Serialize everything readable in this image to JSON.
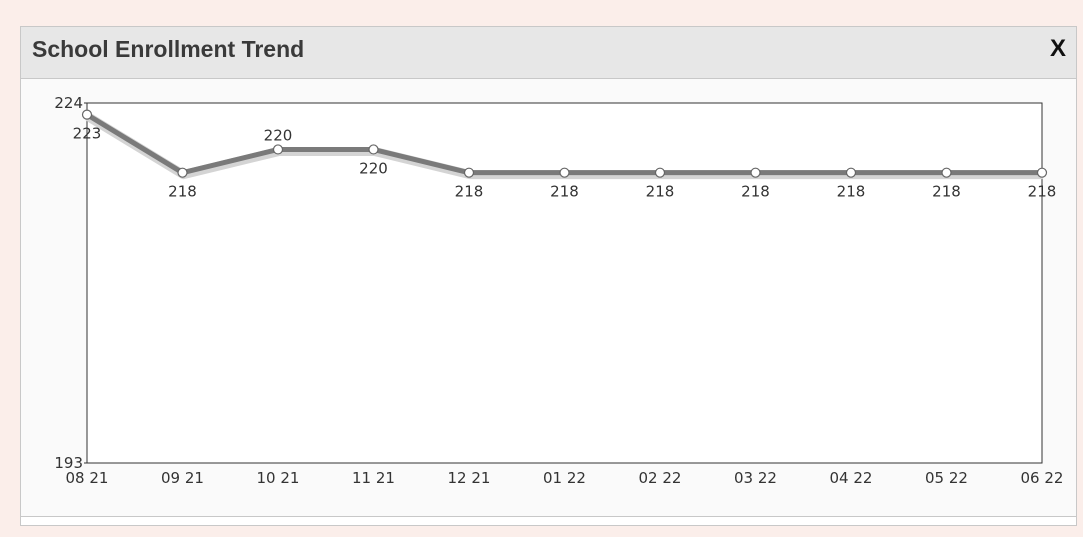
{
  "window": {
    "title": "School Enrollment Trend",
    "close_label": "X"
  },
  "chart_data": {
    "type": "line",
    "categories": [
      "08 21",
      "09 21",
      "10 21",
      "11 21",
      "12 21",
      "01 22",
      "02 22",
      "03 22",
      "04 22",
      "05 22",
      "06 22"
    ],
    "values": [
      223,
      218,
      220,
      220,
      218,
      218,
      218,
      218,
      218,
      218,
      218
    ],
    "ylim": [
      193,
      224
    ],
    "y_ticks": [
      "193",
      "224"
    ],
    "grid": false,
    "line_color": "#7a7a7a"
  }
}
